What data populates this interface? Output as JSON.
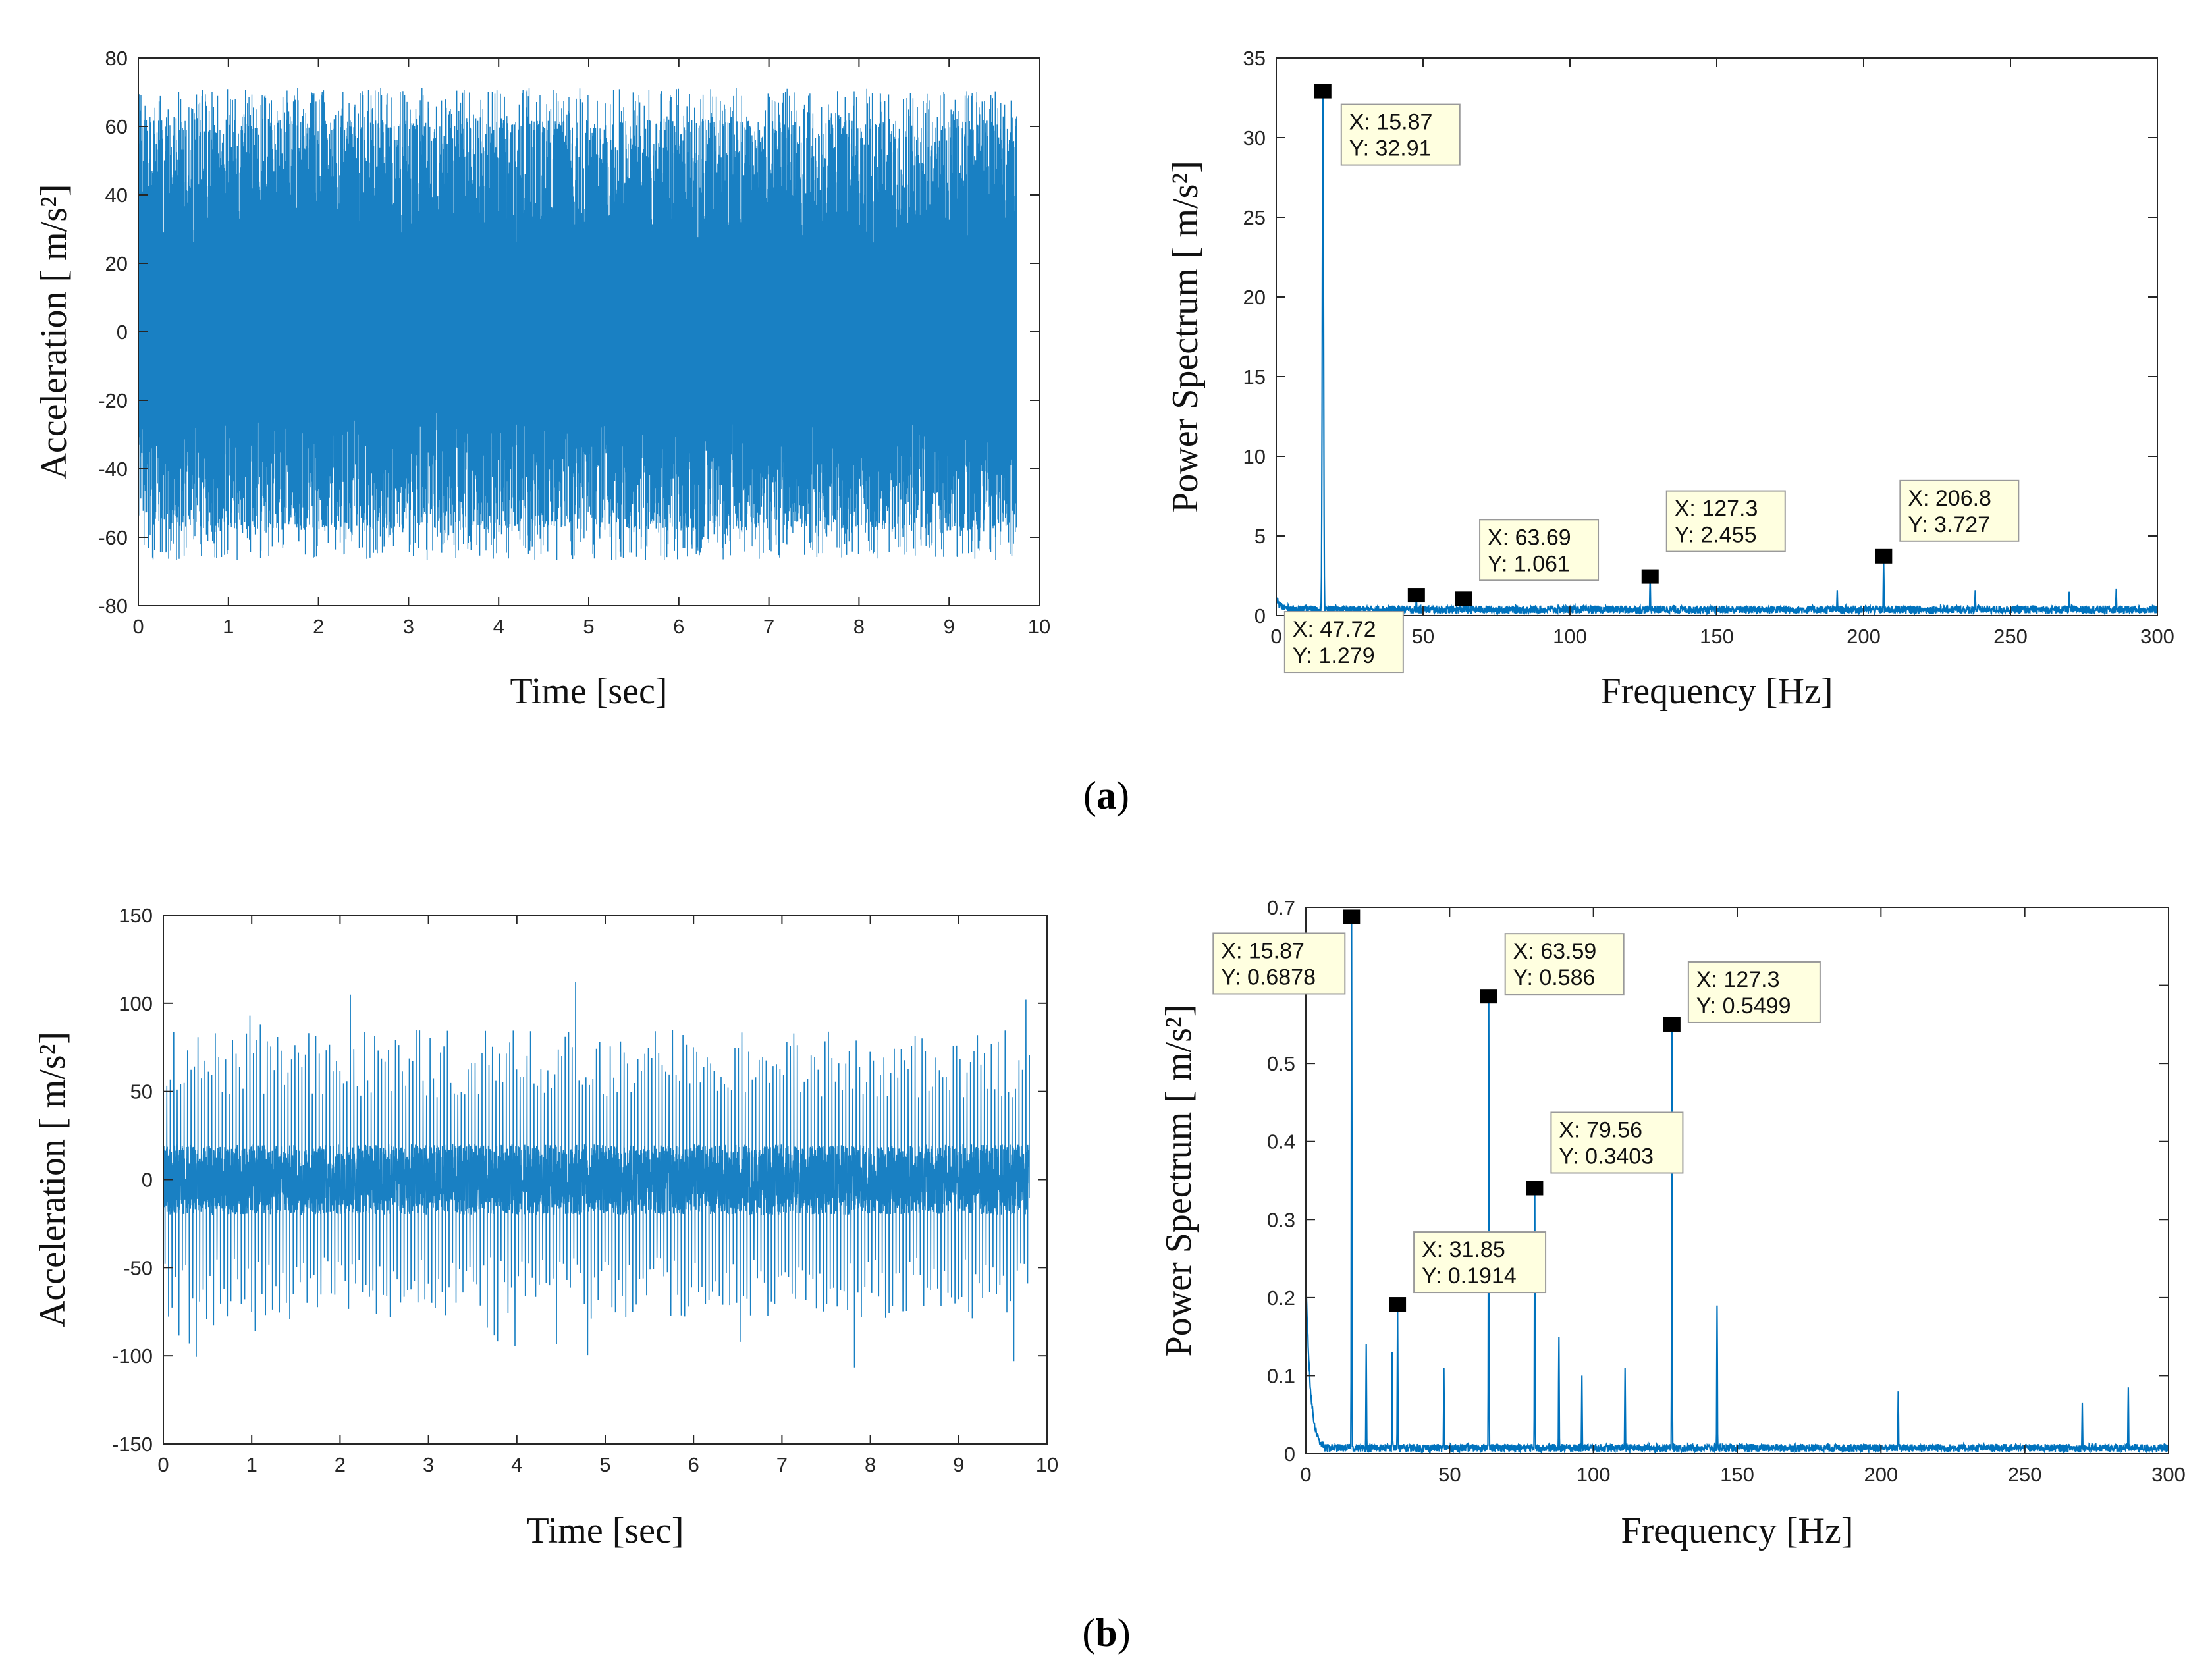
{
  "colors": {
    "signal": "#0072BD",
    "axis": "#262626",
    "tooltip_bg": "#FFFFE0",
    "tooltip_border": "#9a9a9a",
    "marker": "#000000"
  },
  "panels": [
    {
      "caption_letter": "a"
    },
    {
      "caption_letter": "b"
    }
  ],
  "chart_data": [
    {
      "type": "line",
      "panel": "a",
      "xlabel": "Time [sec]",
      "ylabel": "Acceleration [ m/s²]",
      "xlim": [
        0,
        10
      ],
      "ylim": [
        -80,
        80
      ],
      "xticks": [
        0,
        1,
        2,
        3,
        4,
        5,
        6,
        7,
        8,
        9,
        10
      ],
      "yticks": [
        -80,
        -60,
        -40,
        -20,
        0,
        20,
        40,
        60,
        80
      ],
      "xtick_labels": [
        "0",
        "1",
        "2",
        "3",
        "4",
        "5",
        "6",
        "7",
        "8",
        "9",
        "10"
      ],
      "ytick_labels": [
        "-80",
        "-60",
        "-40",
        "-20",
        "0",
        "20",
        "40",
        "60",
        "80"
      ],
      "grid": false,
      "signal": {
        "t_end": 9.75,
        "amplitude_peak": 62,
        "amplitude_trough": -58,
        "max_value": 72,
        "min_value": -68
      }
    },
    {
      "type": "line",
      "panel": "a",
      "xlabel": "Frequency [Hz]",
      "ylabel": "Power Spectrum [ m/s²]",
      "xlim": [
        0,
        300
      ],
      "ylim": [
        0,
        35
      ],
      "xticks": [
        0,
        50,
        100,
        150,
        200,
        250,
        300
      ],
      "yticks": [
        0,
        5,
        10,
        15,
        20,
        25,
        30,
        35
      ],
      "xtick_labels": [
        "0",
        "50",
        "100",
        "150",
        "200",
        "250",
        "300"
      ],
      "ytick_labels": [
        "0",
        "5",
        "10",
        "15",
        "20",
        "25",
        "30",
        "35"
      ],
      "grid": false,
      "peaks": [
        {
          "x": 15.87,
          "y": 32.91
        },
        {
          "x": 47.72,
          "y": 1.279
        },
        {
          "x": 63.69,
          "y": 1.061
        },
        {
          "x": 127.3,
          "y": 2.455
        },
        {
          "x": 206.8,
          "y": 3.727
        },
        {
          "x": 191.0,
          "y": 1.6
        },
        {
          "x": 238.0,
          "y": 1.6
        },
        {
          "x": 270.0,
          "y": 1.5
        },
        {
          "x": 286.0,
          "y": 1.7
        }
      ],
      "datatips": [
        {
          "x_text": "X: 15.87",
          "y_text": "Y: 32.91"
        },
        {
          "x_text": "X: 47.72",
          "y_text": "Y: 1.279"
        },
        {
          "x_text": "X: 63.69",
          "y_text": "Y: 1.061"
        },
        {
          "x_text": "X: 127.3",
          "y_text": "Y: 2.455"
        },
        {
          "x_text": "X: 206.8",
          "y_text": "Y: 3.727"
        }
      ]
    },
    {
      "type": "line",
      "panel": "b",
      "xlabel": "Time [sec]",
      "ylabel": "Acceleration [ m/s²]",
      "xlim": [
        0,
        10
      ],
      "ylim": [
        -150,
        150
      ],
      "xticks": [
        0,
        1,
        2,
        3,
        4,
        5,
        6,
        7,
        8,
        9,
        10
      ],
      "yticks": [
        -150,
        -100,
        -50,
        0,
        50,
        100,
        150
      ],
      "xtick_labels": [
        "0",
        "1",
        "2",
        "3",
        "4",
        "5",
        "6",
        "7",
        "8",
        "9",
        "10"
      ],
      "ytick_labels": [
        "-150",
        "-100",
        "-50",
        "0",
        "50",
        "100",
        "150"
      ],
      "grid": false,
      "signal": {
        "t_end": 9.8,
        "amplitude_peak": 85,
        "amplitude_trough": -80,
        "max_value": 120,
        "min_value": -120,
        "noise_band": 20
      }
    },
    {
      "type": "line",
      "panel": "b",
      "xlabel": "Frequency [Hz]",
      "ylabel": "Power Spectrum [ m/s²]",
      "xlim": [
        0,
        300
      ],
      "ylim": [
        0,
        0.7
      ],
      "xticks": [
        0,
        50,
        100,
        150,
        200,
        250,
        300
      ],
      "yticks": [
        0,
        0.1,
        0.2,
        0.3,
        0.4,
        0.5,
        0.6,
        0.7
      ],
      "xtick_labels": [
        "0",
        "50",
        "100",
        "150",
        "200",
        "250",
        "300"
      ],
      "ytick_labels": [
        "0",
        "0.1",
        "0.2",
        "0.3",
        "0.4",
        "0.5",
        "0.6",
        "0.7"
      ],
      "grid": false,
      "peaks": [
        {
          "x": 15.87,
          "y": 0.6878
        },
        {
          "x": 31.85,
          "y": 0.1914
        },
        {
          "x": 63.59,
          "y": 0.586
        },
        {
          "x": 79.56,
          "y": 0.3403
        },
        {
          "x": 127.3,
          "y": 0.5499
        },
        {
          "x": 21.0,
          "y": 0.14
        },
        {
          "x": 30.0,
          "y": 0.13
        },
        {
          "x": 48.0,
          "y": 0.11
        },
        {
          "x": 88.0,
          "y": 0.15
        },
        {
          "x": 96.0,
          "y": 0.1
        },
        {
          "x": 111.0,
          "y": 0.11
        },
        {
          "x": 143.0,
          "y": 0.19
        },
        {
          "x": 206.0,
          "y": 0.08
        },
        {
          "x": 270.0,
          "y": 0.065
        },
        {
          "x": 286.0,
          "y": 0.085
        }
      ],
      "datatips": [
        {
          "x_text": "X: 15.87",
          "y_text": "Y: 0.6878"
        },
        {
          "x_text": "X: 31.85",
          "y_text": "Y: 0.1914"
        },
        {
          "x_text": "X: 63.59",
          "y_text": "Y: 0.586"
        },
        {
          "x_text": "X: 79.56",
          "y_text": "Y: 0.3403"
        },
        {
          "x_text": "X: 127.3",
          "y_text": "Y: 0.5499"
        }
      ]
    }
  ]
}
